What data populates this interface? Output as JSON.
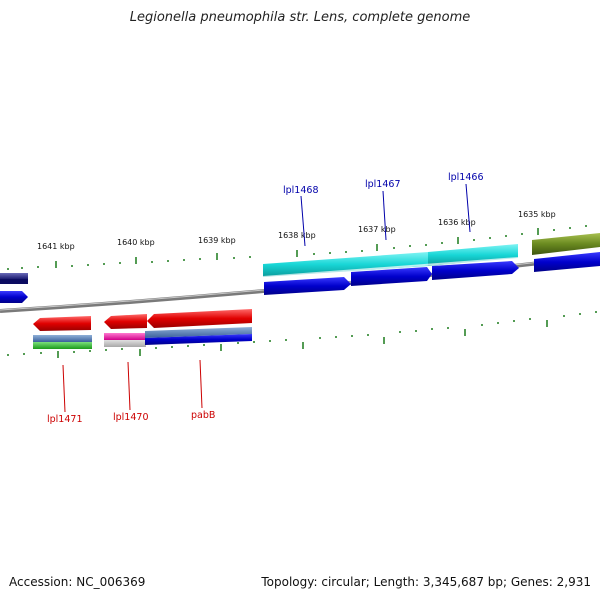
{
  "title": "Legionella pneumophila str. Lens, complete genome",
  "accession": "Accession: NC_006369",
  "topology": "Topology: circular; Length: 3,345,687 bp; Genes: 2,931",
  "kbp_labels": [
    "1641 kbp",
    "1640 kbp",
    "1639 kbp",
    "1638 kbp",
    "1637 kbp",
    "1636 kbp",
    "1635 kbp"
  ],
  "gene_labels_top": [
    "lpl1468",
    "lpl1467",
    "lpl1466"
  ],
  "gene_labels_bottom": [
    "lpl1471",
    "lpl1470",
    "pabB"
  ],
  "colors": {
    "backbone": "#7a7a7a",
    "tick": "#1a7a1a",
    "gene_blue": "#0000cc",
    "gene_cyan": "#19d4d4",
    "gene_red": "#e00000",
    "gene_olive": "#6a8a20",
    "label_top": "#0000aa",
    "label_bottom": "#cc0000"
  }
}
